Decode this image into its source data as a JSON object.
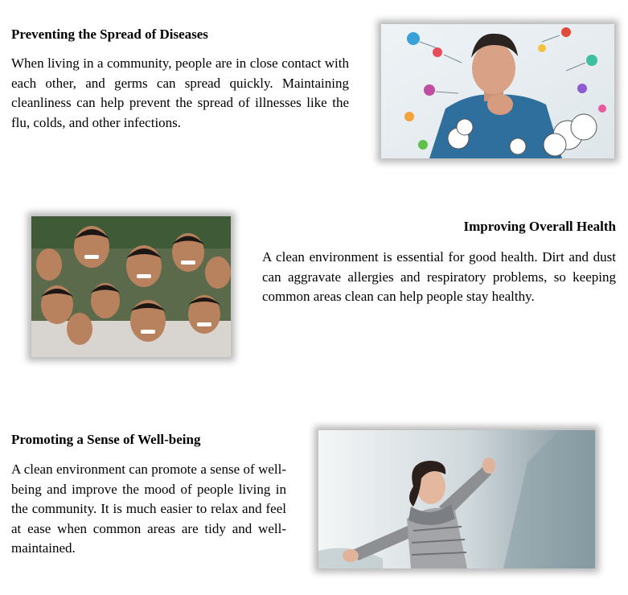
{
  "sections": [
    {
      "heading": "Preventing the Spread of Diseases",
      "body": "When living in a community, people are in close contact with each other, and germs can spread quickly. Maintaining cleanliness can help prevent the spread of illnesses like the flu, colds, and other infections.",
      "image": "man-sneezing-with-germs-illustration"
    },
    {
      "heading": "Improving Overall Health",
      "body": "A clean environment is essential for good health. Dirt and dust can aggravate allergies and respiratory problems, so keeping common areas clean can help people stay healthy.",
      "image": "group-of-smiling-children"
    },
    {
      "heading": "Promoting a Sense of Well-being",
      "body": "A clean environment can promote a sense of well-being and improve the mood of people living in the community. It is much easier to relax and feel at ease when common areas are tidy and well-maintained.",
      "image": "woman-with-arms-outstretched-outdoors"
    }
  ]
}
